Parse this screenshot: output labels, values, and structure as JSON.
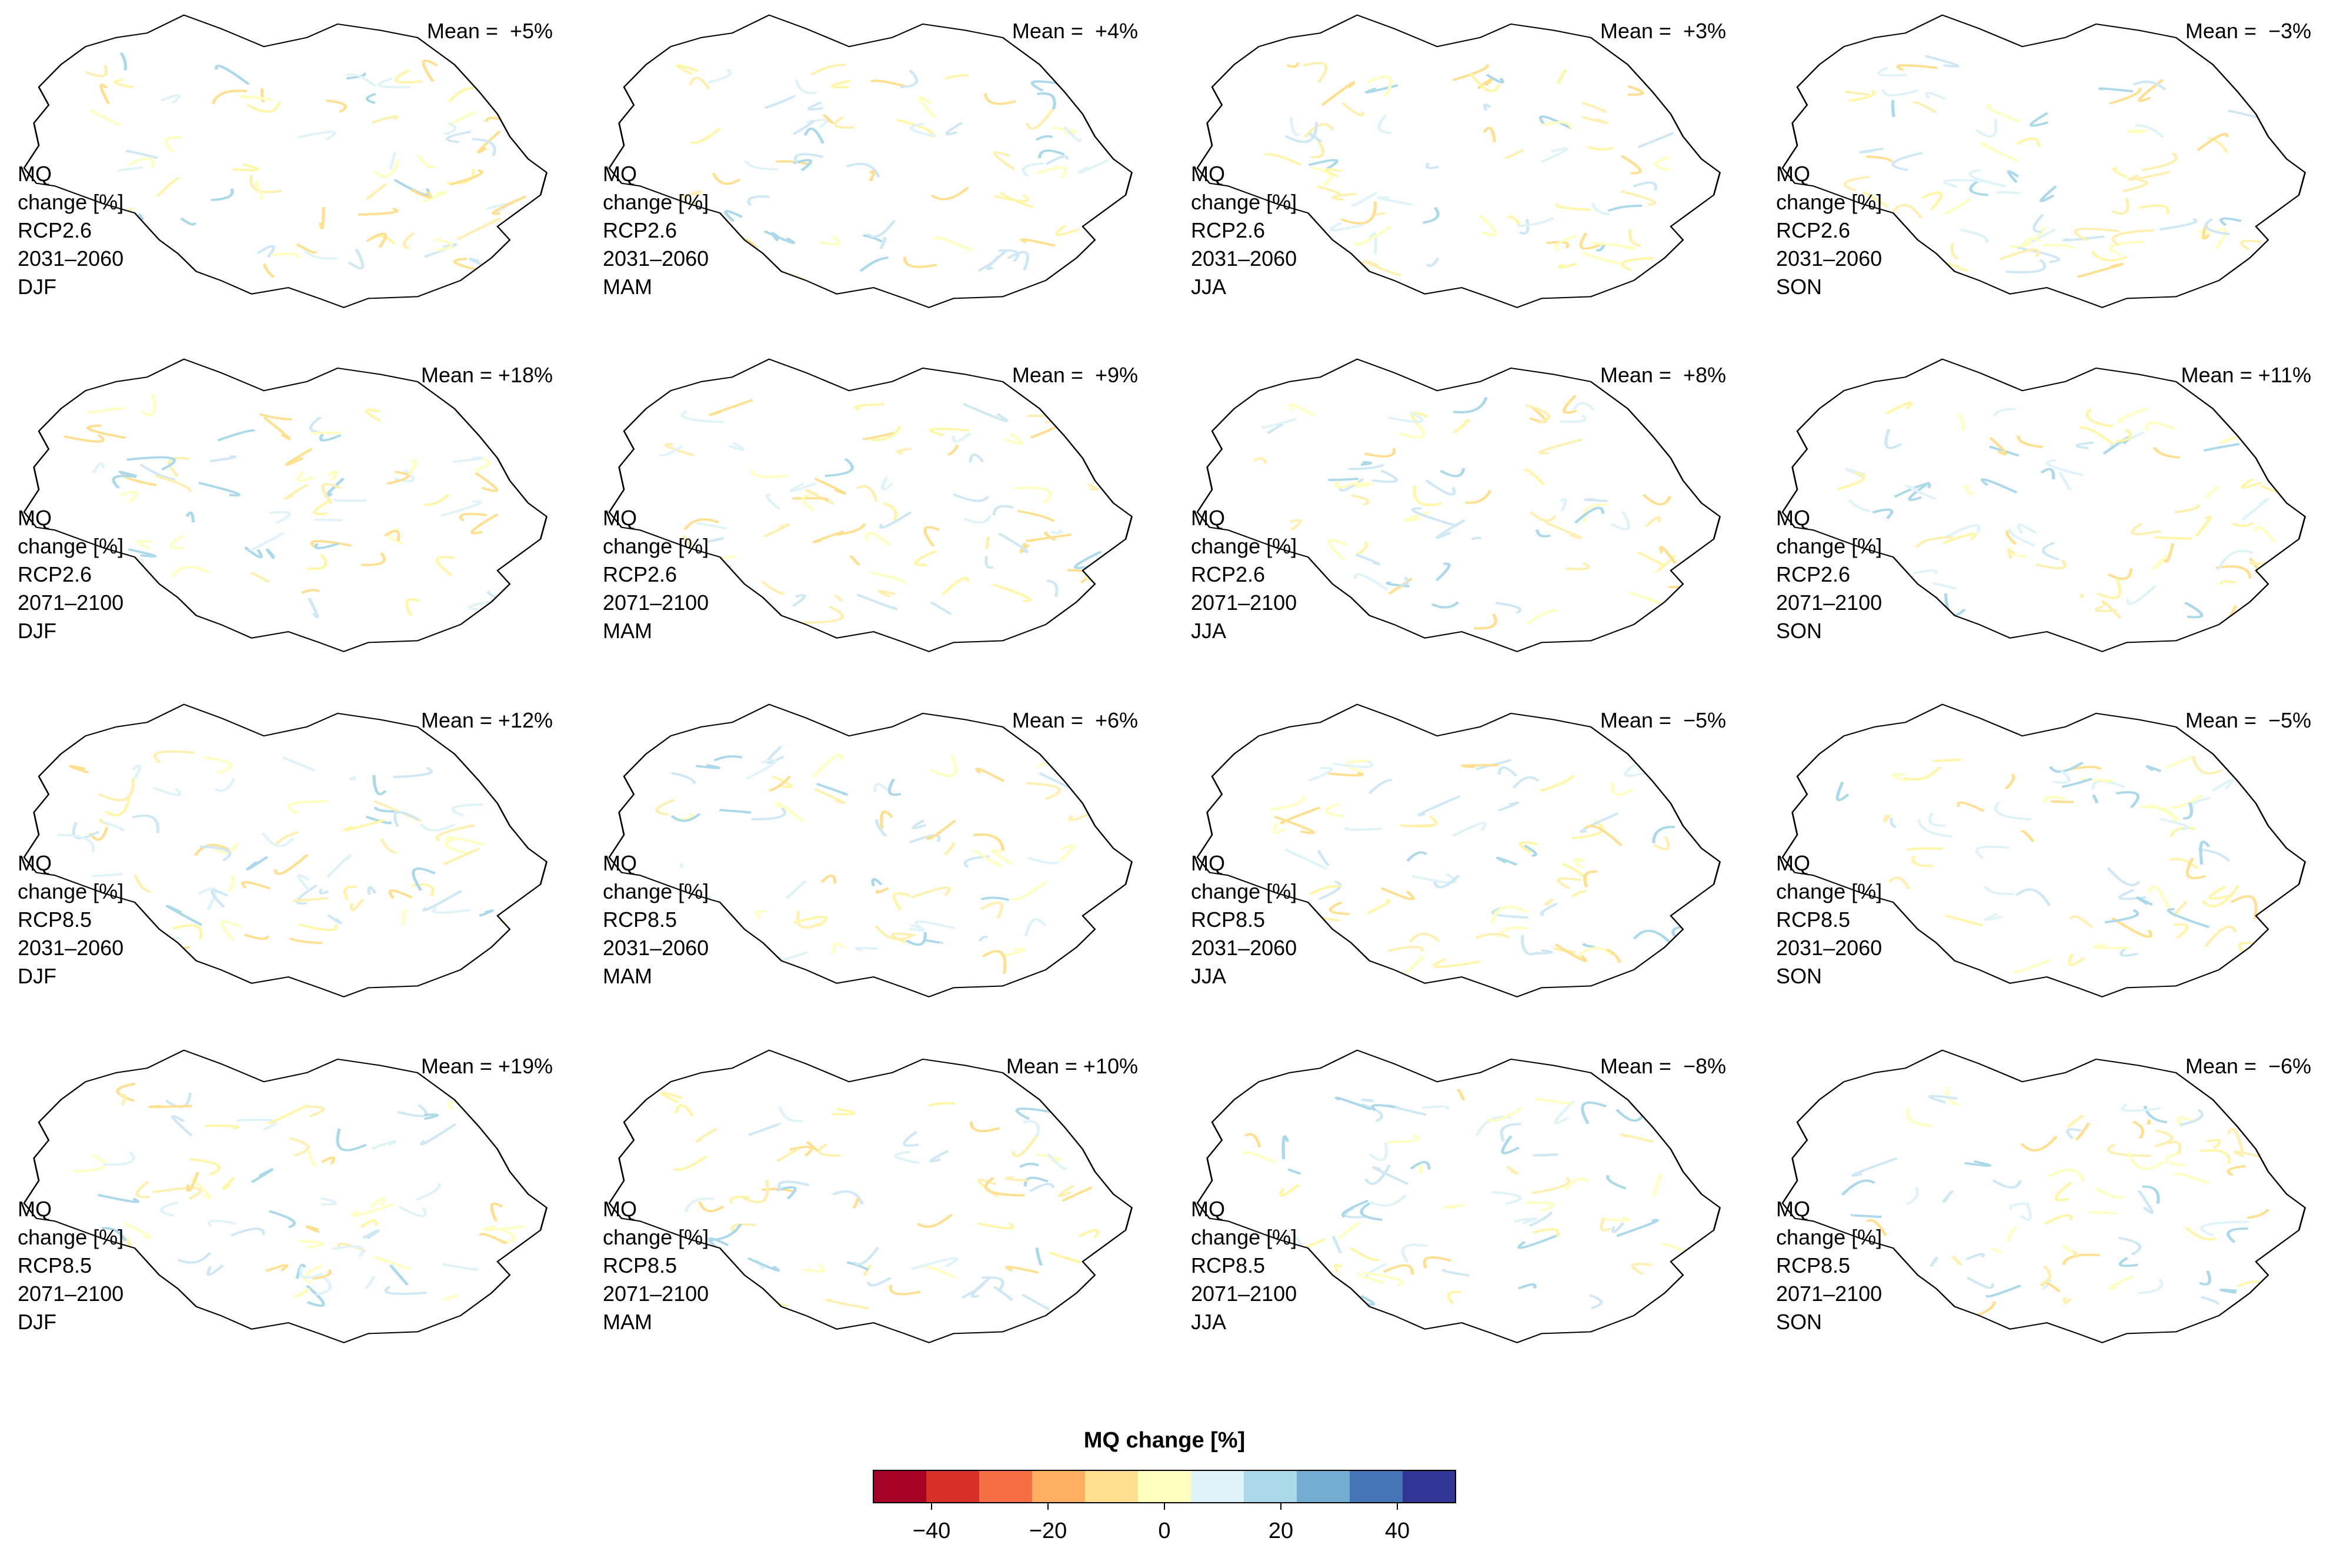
{
  "legend": {
    "title": "MQ change [%]",
    "bins": [
      -50,
      -40,
      -30,
      -20,
      -10,
      0,
      10,
      20,
      30,
      40,
      50
    ],
    "colors": [
      "#a50026",
      "#d73027",
      "#f46d43",
      "#fdae61",
      "#fee090",
      "#ffffbf",
      "#e0f3f8",
      "#abd9e9",
      "#74add1",
      "#4575b4",
      "#313695"
    ],
    "ticks": [
      -40,
      -20,
      0,
      20,
      40
    ],
    "tick_labels": [
      "−40",
      "−20",
      "0",
      "20",
      "40"
    ]
  },
  "panels": [
    {
      "mean": "Mean =  +5%",
      "var": "MQ",
      "unit": "change [%]",
      "scenario": "RCP2.6",
      "period": "2031–2060",
      "season": "DJF"
    },
    {
      "mean": "Mean =  +4%",
      "var": "MQ",
      "unit": "change [%]",
      "scenario": "RCP2.6",
      "period": "2031–2060",
      "season": "MAM"
    },
    {
      "mean": "Mean =  +3%",
      "var": "MQ",
      "unit": "change [%]",
      "scenario": "RCP2.6",
      "period": "2031–2060",
      "season": "JJA"
    },
    {
      "mean": "Mean =  −3%",
      "var": "MQ",
      "unit": "change [%]",
      "scenario": "RCP2.6",
      "period": "2031–2060",
      "season": "SON"
    },
    {
      "mean": "Mean = +18%",
      "var": "MQ",
      "unit": "change [%]",
      "scenario": "RCP2.6",
      "period": "2071–2100",
      "season": "DJF"
    },
    {
      "mean": "Mean =  +9%",
      "var": "MQ",
      "unit": "change [%]",
      "scenario": "RCP2.6",
      "period": "2071–2100",
      "season": "MAM"
    },
    {
      "mean": "Mean =  +8%",
      "var": "MQ",
      "unit": "change [%]",
      "scenario": "RCP2.6",
      "period": "2071–2100",
      "season": "JJA"
    },
    {
      "mean": "Mean = +11%",
      "var": "MQ",
      "unit": "change [%]",
      "scenario": "RCP2.6",
      "period": "2071–2100",
      "season": "SON"
    },
    {
      "mean": "Mean = +12%",
      "var": "MQ",
      "unit": "change [%]",
      "scenario": "RCP8.5",
      "period": "2031–2060",
      "season": "DJF"
    },
    {
      "mean": "Mean =  +6%",
      "var": "MQ",
      "unit": "change [%]",
      "scenario": "RCP8.5",
      "period": "2031–2060",
      "season": "MAM"
    },
    {
      "mean": "Mean =  −5%",
      "var": "MQ",
      "unit": "change [%]",
      "scenario": "RCP8.5",
      "period": "2031–2060",
      "season": "JJA"
    },
    {
      "mean": "Mean =  −5%",
      "var": "MQ",
      "unit": "change [%]",
      "scenario": "RCP8.5",
      "period": "2031–2060",
      "season": "SON"
    },
    {
      "mean": "Mean = +19%",
      "var": "MQ",
      "unit": "change [%]",
      "scenario": "RCP8.5",
      "period": "2071–2100",
      "season": "DJF"
    },
    {
      "mean": "Mean = +10%",
      "var": "MQ",
      "unit": "change [%]",
      "scenario": "RCP8.5",
      "period": "2071–2100",
      "season": "MAM"
    },
    {
      "mean": "Mean =  −8%",
      "var": "MQ",
      "unit": "change [%]",
      "scenario": "RCP8.5",
      "period": "2071–2100",
      "season": "JJA"
    },
    {
      "mean": "Mean =  −6%",
      "var": "MQ",
      "unit": "change [%]",
      "scenario": "RCP8.5",
      "period": "2071–2100",
      "season": "SON"
    }
  ]
}
